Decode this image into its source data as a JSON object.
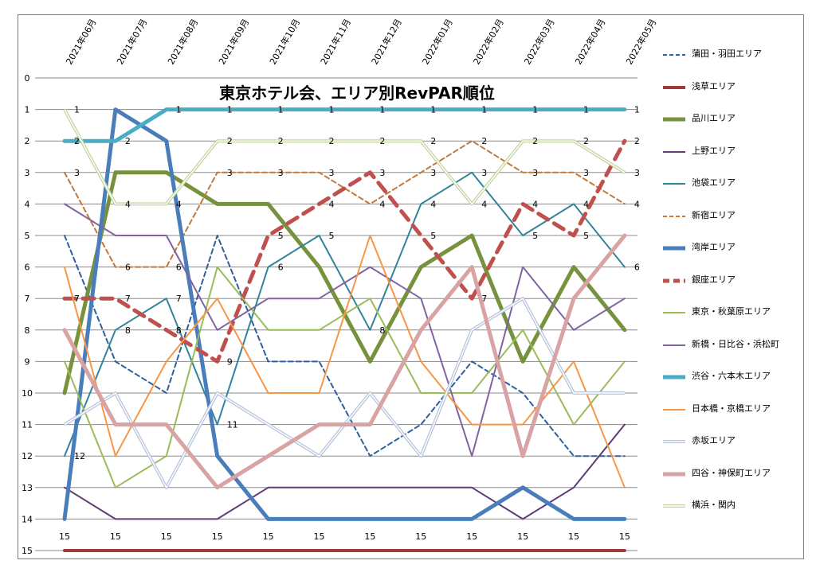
{
  "chart_data": {
    "type": "line",
    "title": "東京ホテル会、エリア別RevPAR順位",
    "xlabel": "",
    "ylabel": "",
    "categories": [
      "2021年06月",
      "2021年07月",
      "2021年08月",
      "2021年09月",
      "2021年10月",
      "2021年11月",
      "2021年12月",
      "2022年01月",
      "2022年02月",
      "2022年03月",
      "2022年04月",
      "2022年05月"
    ],
    "ylim": [
      0,
      15
    ],
    "y_inverted": true,
    "y_ticks": [
      "0",
      "1",
      "2",
      "3",
      "4",
      "5",
      "6",
      "7",
      "8",
      "9",
      "10",
      "11",
      "12",
      "13",
      "14",
      "15"
    ],
    "grid": true,
    "legend_position": "right",
    "series": [
      {
        "name": "蒲田・羽田エリア",
        "values": [
          5,
          9,
          10,
          5,
          9,
          9,
          12,
          11,
          9,
          10,
          12,
          12
        ],
        "color": "#2e5f9e",
        "style": "dashed",
        "width": 2
      },
      {
        "name": "浅草エリア",
        "values": [
          15,
          15,
          15,
          15,
          15,
          15,
          15,
          15,
          15,
          15,
          15,
          15
        ],
        "color": "#a0393a",
        "style": "solid",
        "width": 4,
        "labels": [
          "15",
          "15",
          "15",
          "15",
          "15",
          "15",
          "15",
          "15",
          "15",
          "15",
          "15",
          "15"
        ]
      },
      {
        "name": "品川エリア",
        "values": [
          10,
          3,
          3,
          4,
          4,
          6,
          9,
          6,
          5,
          9,
          6,
          8
        ],
        "color": "#76923c",
        "style": "solid",
        "width": 5
      },
      {
        "name": "上野エリア",
        "values": [
          13,
          14,
          14,
          14,
          13,
          13,
          13,
          13,
          13,
          14,
          13,
          11
        ],
        "color": "#5f3c74",
        "style": "solid",
        "width": 2
      },
      {
        "name": "池袋エリア",
        "values": [
          12,
          8,
          7,
          11,
          6,
          5,
          8,
          4,
          3,
          5,
          4,
          6
        ],
        "color": "#31849b",
        "style": "solid",
        "width": 2,
        "labels": [
          "12",
          "8",
          "7",
          "11",
          "6",
          "5",
          "8",
          "4",
          "3",
          "5",
          "4",
          "6"
        ]
      },
      {
        "name": "新宿エリア",
        "values": [
          3,
          6,
          6,
          3,
          3,
          3,
          4,
          3,
          2,
          3,
          3,
          4
        ],
        "color": "#c2783a",
        "style": "dashed",
        "width": 2,
        "labels": [
          "3",
          "6",
          "6",
          "3",
          "3",
          "3",
          "4",
          "3",
          "2",
          "3",
          "3",
          "4"
        ]
      },
      {
        "name": "湾岸エリア",
        "values": [
          14,
          1,
          2,
          12,
          14,
          14,
          14,
          14,
          14,
          13,
          14,
          14
        ],
        "color": "#4a7ebb",
        "style": "solid",
        "width": 5
      },
      {
        "name": "銀座エリア",
        "values": [
          7,
          7,
          8,
          9,
          5,
          4,
          3,
          5,
          7,
          4,
          5,
          2
        ],
        "color": "#c0504d",
        "style": "dashed",
        "width": 5,
        "labels": [
          "7",
          "7",
          "8",
          "9",
          "5",
          "4",
          "3",
          "5",
          "7",
          "4",
          "5",
          "2"
        ]
      },
      {
        "name": "東京・秋葉原エリア",
        "values": [
          9,
          13,
          12,
          6,
          8,
          8,
          7,
          10,
          10,
          8,
          11,
          9
        ],
        "color": "#9bbb59",
        "style": "solid",
        "width": 2
      },
      {
        "name": "新橋・日比谷・浜松町",
        "values": [
          4,
          5,
          5,
          8,
          7,
          7,
          6,
          7,
          12,
          6,
          8,
          7
        ],
        "color": "#8064a2",
        "style": "solid",
        "width": 2
      },
      {
        "name": "渋谷・六本木エリア",
        "values": [
          2,
          2,
          1,
          1,
          1,
          1,
          1,
          1,
          1,
          1,
          1,
          1
        ],
        "color": "#4bacc6",
        "style": "solid",
        "width": 5,
        "labels": [
          "2",
          "2",
          "1",
          "1",
          "1",
          "1",
          "1",
          "1",
          "1",
          "1",
          "1",
          "1"
        ]
      },
      {
        "name": "日本橋・京橋エリア",
        "values": [
          6,
          12,
          9,
          7,
          10,
          10,
          5,
          9,
          11,
          11,
          9,
          13
        ],
        "color": "#f79646",
        "style": "solid",
        "width": 2
      },
      {
        "name": "赤坂エリア",
        "values": [
          11,
          10,
          13,
          10,
          11,
          12,
          10,
          12,
          8,
          7,
          10,
          10
        ],
        "color": "#b9c5de",
        "style": "double",
        "width": 2
      },
      {
        "name": "四谷・神保町エリア",
        "values": [
          8,
          11,
          11,
          13,
          12,
          11,
          11,
          8,
          6,
          12,
          7,
          5
        ],
        "color": "#d9a3a3",
        "style": "solid",
        "width": 5
      },
      {
        "name": "横浜・関内",
        "values": [
          1,
          4,
          4,
          2,
          2,
          2,
          2,
          2,
          4,
          2,
          2,
          3
        ],
        "color": "#c4d6a0",
        "style": "double",
        "width": 2,
        "labels": [
          "1",
          "4",
          "4",
          "2",
          "2",
          "2",
          "2",
          "2",
          "4",
          "2",
          "2",
          "3"
        ]
      }
    ]
  }
}
